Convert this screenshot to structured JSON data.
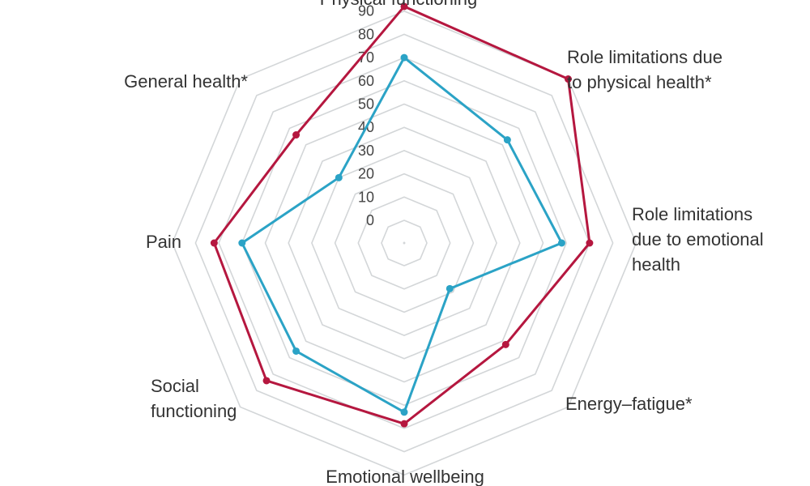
{
  "chart_data": {
    "type": "radar",
    "axes": [
      "Physical functioning",
      "Role limitations due to physical health*",
      "Role limitations due to emotional health",
      "Energy–fatigue*",
      "Emotional wellbeing",
      "Social functioning",
      "Pain",
      "General health*"
    ],
    "axis_label_lines": [
      [
        "Physical functioning"
      ],
      [
        "Role limitations due",
        "to physical health*"
      ],
      [
        "Role limitations",
        "due to emotional",
        "health"
      ],
      [
        "Energy–fatigue*"
      ],
      [
        "Emotional wellbeing"
      ],
      [
        "Social",
        "functioning"
      ],
      [
        "Pain"
      ],
      [
        "General health*"
      ]
    ],
    "r_ticks": [
      "0",
      "10",
      "20",
      "30",
      "40",
      "50",
      "60",
      "70",
      "80",
      "90"
    ],
    "r_range": [
      -10,
      90
    ],
    "grid": true,
    "legend": "none",
    "series": [
      {
        "color": "#b5173f",
        "values": [
          92,
          90,
          70,
          52,
          68,
          74,
          72,
          56
        ]
      },
      {
        "color": "#2ba3c6",
        "values": [
          70,
          53,
          58,
          18,
          63,
          56,
          60,
          30
        ]
      }
    ]
  }
}
